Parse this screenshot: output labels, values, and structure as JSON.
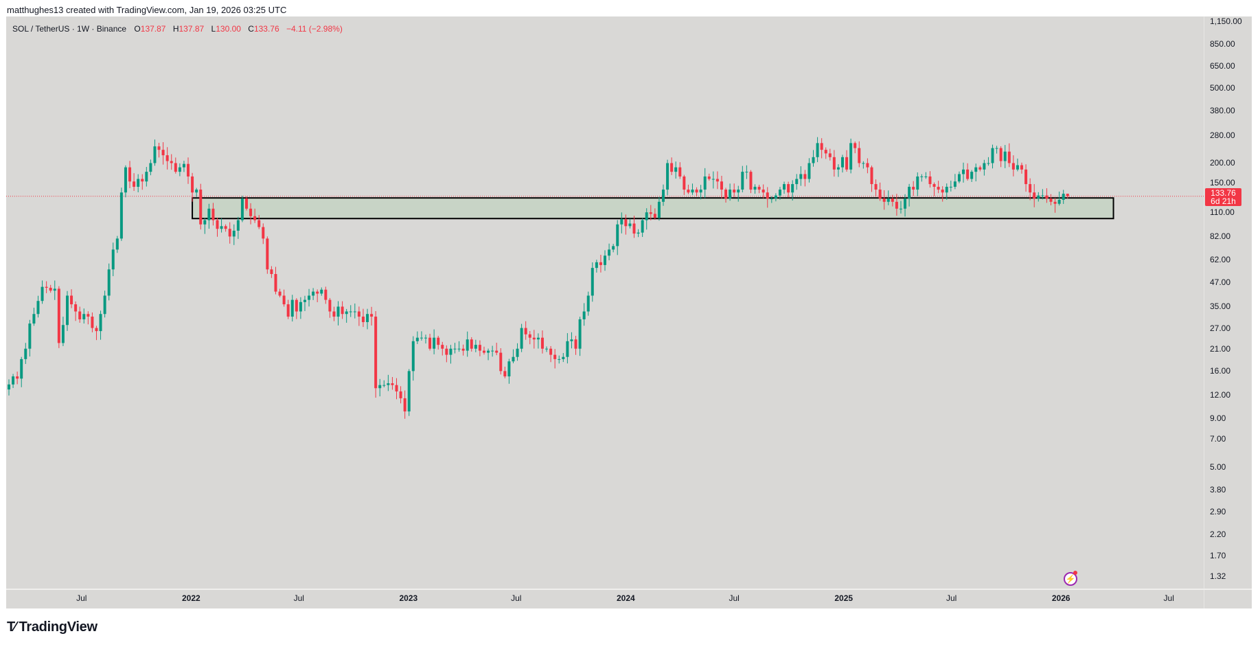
{
  "credit": "matthughes13 created with TradingView.com, Jan 19, 2026 03:25 UTC",
  "legend": {
    "symbol": "SOL / TetherUS · 1W · Binance",
    "o_label": "O",
    "o": "137.87",
    "h_label": "H",
    "h": "137.87",
    "l_label": "L",
    "l": "130.00",
    "c_label": "C",
    "c": "133.76",
    "change": "−4.11 (−2.98%)"
  },
  "last_price": {
    "price": "133.76",
    "countdown": "6d 21h"
  },
  "logo": "TradingView",
  "bolt_icon": "lightning-icon",
  "colors": {
    "up": "#089981",
    "down": "#f23645",
    "background": "#d9d8d6",
    "zone_fill": "#c8d4c6",
    "zone_border": "#000000",
    "last_price": "#f23645"
  },
  "chart_data": {
    "type": "candlestick",
    "scale": "log",
    "interval": "1W",
    "start_week": "2021-03-01",
    "ylim": [
      1.2,
      1200
    ],
    "y_ticks": [
      "1,150.00",
      "850.00",
      "650.00",
      "500.00",
      "380.00",
      "280.00",
      "200.00",
      "150.00",
      "110.00",
      "82.00",
      "62.00",
      "47.00",
      "35.00",
      "27.00",
      "21.00",
      "16.00",
      "12.00",
      "9.00",
      "7.00",
      "5.00",
      "3.80",
      "2.90",
      "2.20",
      "1.70",
      "1.32"
    ],
    "y_tick_values": [
      1150,
      850,
      650,
      500,
      380,
      280,
      200,
      150,
      110,
      82,
      62,
      47,
      35,
      27,
      21,
      16,
      12,
      9,
      7,
      5,
      3.8,
      2.9,
      2.2,
      1.7,
      1.32
    ],
    "x_ticks": [
      {
        "label": "Jul",
        "date": "2021-07-01",
        "year": false
      },
      {
        "label": "2022",
        "date": "2022-01-01",
        "year": true
      },
      {
        "label": "Jul",
        "date": "2022-07-01",
        "year": false
      },
      {
        "label": "2023",
        "date": "2023-01-01",
        "year": true
      },
      {
        "label": "Jul",
        "date": "2023-07-01",
        "year": false
      },
      {
        "label": "2024",
        "date": "2024-01-01",
        "year": true
      },
      {
        "label": "Jul",
        "date": "2024-07-01",
        "year": false
      },
      {
        "label": "2025",
        "date": "2025-01-01",
        "year": true
      },
      {
        "label": "Jul",
        "date": "2025-07-01",
        "year": false
      },
      {
        "label": "2026",
        "date": "2026-01-01",
        "year": true
      },
      {
        "label": "Jul",
        "date": "2026-07-01",
        "year": false
      }
    ],
    "closes": [
      13.6,
      15,
      14.6,
      18.5,
      21,
      28.5,
      32,
      37.5,
      44.5,
      44,
      42.5,
      43.5,
      22.5,
      28,
      40,
      36,
      33,
      30,
      32,
      31,
      27,
      26,
      32,
      40,
      55,
      70,
      80,
      140,
      190,
      160,
      150,
      165,
      160,
      180,
      200,
      245,
      235,
      220,
      205,
      200,
      180,
      190,
      198,
      170,
      140,
      145,
      95,
      100,
      115,
      100,
      90,
      93,
      90,
      82,
      88,
      100,
      130,
      115,
      105,
      100,
      92,
      80,
      55,
      52,
      42,
      40,
      36,
      31,
      38,
      33,
      37,
      38,
      40,
      42,
      41,
      43,
      38,
      33,
      31,
      35,
      32,
      33,
      33,
      33,
      31,
      29,
      32,
      31,
      13,
      13.5,
      13.5,
      13.8,
      13.5,
      12.5,
      11.5,
      9.8,
      16,
      23,
      24,
      24,
      24,
      21,
      24,
      22,
      21,
      19.5,
      21,
      21,
      21,
      20.5,
      23.5,
      21,
      22,
      20.5,
      20,
      20.5,
      20.5,
      20,
      16,
      15,
      18,
      19,
      21,
      27,
      25,
      24,
      23.5,
      24,
      21,
      21,
      19.5,
      18.5,
      18.5,
      19,
      23,
      23.5,
      21,
      30,
      33,
      40,
      56,
      60,
      58,
      65,
      70,
      73,
      95,
      101,
      93,
      96,
      85,
      86,
      100,
      110,
      108,
      103,
      125,
      145,
      200,
      180,
      190,
      170,
      145,
      140,
      145,
      140,
      145,
      170,
      165,
      165,
      160,
      145,
      130,
      145,
      140,
      145,
      180,
      180,
      145,
      150,
      145,
      140,
      130,
      130,
      135,
      145,
      155,
      140,
      155,
      165,
      175,
      165,
      200,
      215,
      255,
      235,
      225,
      215,
      185,
      190,
      215,
      185,
      255,
      240,
      200,
      200,
      190,
      155,
      145,
      130,
      125,
      130,
      125,
      115,
      115,
      130,
      150,
      145,
      170,
      170,
      170,
      155,
      150,
      145,
      140,
      150,
      150,
      160,
      175,
      185,
      165,
      180,
      190,
      185,
      200,
      200,
      240,
      240,
      205,
      230,
      200,
      185,
      195,
      185,
      155,
      140,
      130,
      135,
      135,
      130,
      125,
      122,
      128,
      137.87,
      133.76
    ],
    "first_open": 12.8,
    "last_candle": {
      "open": 137.87,
      "high": 137.87,
      "low": 130.0,
      "close": 133.76
    },
    "zone": {
      "low": 102,
      "high": 131,
      "from": "2022-01-03",
      "to": "2026-03-30"
    },
    "last_price_line": 133.76
  }
}
